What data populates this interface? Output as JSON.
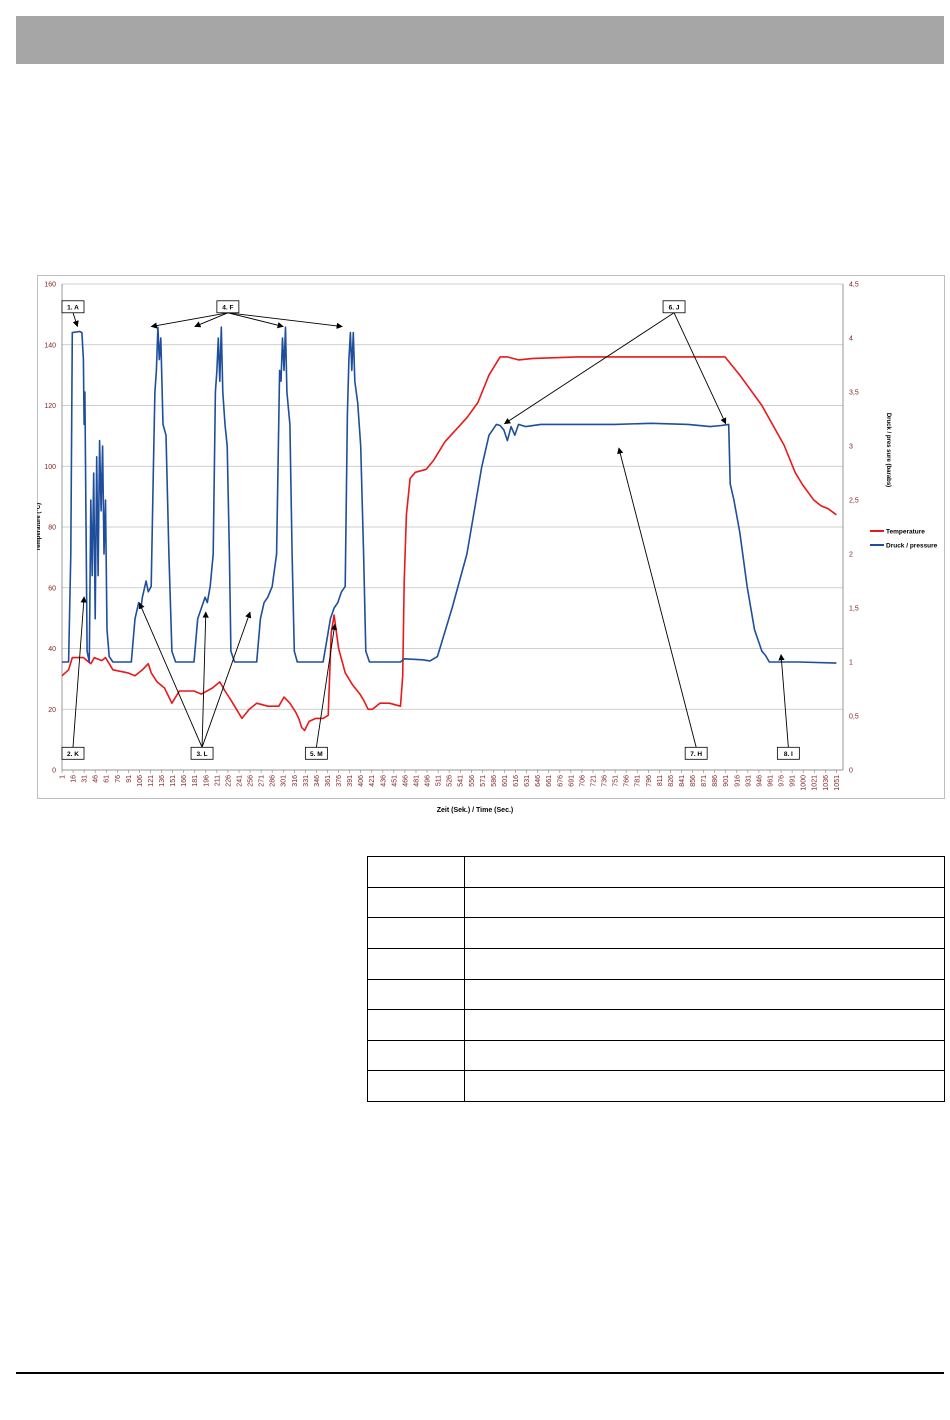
{
  "page": {
    "x_axis_title": "Zeit (Sek.) / Time (Sec.)"
  },
  "chart_data": {
    "type": "line",
    "xlabel": "Zeit (Sek.) / Time (Sec.)",
    "ylabel_left": "Temperature (°C)",
    "ylabel_right": "Druck / pres sure (barabs)",
    "ylim_left": [
      0,
      160
    ],
    "ylim_right": [
      0,
      4.5
    ],
    "xlim": [
      1,
      1060
    ],
    "grid": true,
    "legend_position": "right",
    "x_ticks": [
      "1",
      "16",
      "31",
      "46",
      "61",
      "76",
      "91",
      "106",
      "121",
      "136",
      "151",
      "166",
      "181",
      "196",
      "211",
      "226",
      "241",
      "256",
      "271",
      "286",
      "301",
      "316",
      "331",
      "346",
      "361",
      "376",
      "391",
      "406",
      "421",
      "436",
      "451",
      "466",
      "481",
      "496",
      "511",
      "526",
      "541",
      "556",
      "571",
      "586",
      "601",
      "616",
      "631",
      "646",
      "661",
      "676",
      "691",
      "706",
      "721",
      "736",
      "751",
      "766",
      "781",
      "796",
      "811",
      "826",
      "841",
      "856",
      "871",
      "886",
      "901",
      "916",
      "931",
      "946",
      "961",
      "976",
      "991",
      "1000",
      "1021",
      "1036",
      "1051"
    ],
    "y_ticks_left": [
      "0",
      "20",
      "40",
      "60",
      "80",
      "100",
      "120",
      "140",
      "160"
    ],
    "y_ticks_right": [
      "0",
      "0,5",
      "1",
      "1,5",
      "2",
      "2,5",
      "3",
      "3,5",
      "4",
      "4,5"
    ],
    "series": [
      {
        "name": "Temperature",
        "axis": "left",
        "color": "#e8191b",
        "points": [
          [
            1,
            31
          ],
          [
            10,
            33
          ],
          [
            15,
            37
          ],
          [
            30,
            37
          ],
          [
            40,
            35
          ],
          [
            45,
            37
          ],
          [
            55,
            36
          ],
          [
            60,
            37
          ],
          [
            70,
            33
          ],
          [
            90,
            32
          ],
          [
            100,
            31
          ],
          [
            110,
            33
          ],
          [
            118,
            35
          ],
          [
            122,
            32
          ],
          [
            130,
            29
          ],
          [
            140,
            27
          ],
          [
            150,
            22
          ],
          [
            160,
            26
          ],
          [
            180,
            26
          ],
          [
            190,
            25
          ],
          [
            205,
            27
          ],
          [
            215,
            29
          ],
          [
            222,
            26
          ],
          [
            230,
            23
          ],
          [
            240,
            19
          ],
          [
            245,
            17
          ],
          [
            255,
            20
          ],
          [
            265,
            22
          ],
          [
            280,
            21
          ],
          [
            295,
            21
          ],
          [
            302,
            24
          ],
          [
            310,
            22
          ],
          [
            318,
            19
          ],
          [
            322,
            17
          ],
          [
            326,
            14
          ],
          [
            330,
            13
          ],
          [
            336,
            16
          ],
          [
            345,
            17
          ],
          [
            355,
            17
          ],
          [
            362,
            18
          ],
          [
            366,
            45
          ],
          [
            370,
            51
          ],
          [
            376,
            40
          ],
          [
            385,
            32
          ],
          [
            395,
            28
          ],
          [
            405,
            25
          ],
          [
            410,
            23
          ],
          [
            416,
            20
          ],
          [
            422,
            20
          ],
          [
            432,
            22
          ],
          [
            445,
            22
          ],
          [
            460,
            21
          ],
          [
            463,
            31
          ],
          [
            465,
            62
          ],
          [
            468,
            84
          ],
          [
            473,
            96
          ],
          [
            480,
            98
          ],
          [
            495,
            99
          ],
          [
            505,
            102
          ],
          [
            520,
            108
          ],
          [
            550,
            116
          ],
          [
            565,
            121
          ],
          [
            580,
            130
          ],
          [
            595,
            136
          ],
          [
            605,
            136
          ],
          [
            620,
            135
          ],
          [
            640,
            135.5
          ],
          [
            700,
            136
          ],
          [
            800,
            136
          ],
          [
            880,
            136
          ],
          [
            900,
            136
          ],
          [
            910,
            133
          ],
          [
            920,
            130
          ],
          [
            950,
            120
          ],
          [
            980,
            107
          ],
          [
            995,
            98
          ],
          [
            1005,
            94
          ],
          [
            1020,
            89
          ],
          [
            1030,
            87
          ],
          [
            1040,
            86
          ],
          [
            1051,
            84
          ]
        ]
      },
      {
        "name": "Druck / pressure",
        "axis": "right",
        "color": "#1f4e9c",
        "points": [
          [
            1,
            1.0
          ],
          [
            10,
            1.0
          ],
          [
            13,
            2.0
          ],
          [
            15,
            4.05
          ],
          [
            25,
            4.06
          ],
          [
            28,
            4.05
          ],
          [
            30,
            3.8
          ],
          [
            31,
            3.2
          ],
          [
            32,
            3.5
          ],
          [
            35,
            1.1
          ],
          [
            38,
            1.0
          ],
          [
            40,
            2.5
          ],
          [
            42,
            1.8
          ],
          [
            44,
            2.75
          ],
          [
            46,
            1.4
          ],
          [
            48,
            2.9
          ],
          [
            50,
            1.8
          ],
          [
            52,
            3.05
          ],
          [
            54,
            2.4
          ],
          [
            56,
            3.0
          ],
          [
            58,
            2.0
          ],
          [
            60,
            2.5
          ],
          [
            62,
            1.3
          ],
          [
            65,
            1.05
          ],
          [
            70,
            1.0
          ],
          [
            95,
            1.0
          ],
          [
            100,
            1.4
          ],
          [
            105,
            1.55
          ],
          [
            108,
            1.5
          ],
          [
            110,
            1.6
          ],
          [
            115,
            1.75
          ],
          [
            118,
            1.65
          ],
          [
            122,
            1.7
          ],
          [
            125,
            2.8
          ],
          [
            127,
            3.5
          ],
          [
            129,
            3.7
          ],
          [
            131,
            4.1
          ],
          [
            133,
            3.8
          ],
          [
            135,
            4.0
          ],
          [
            138,
            3.2
          ],
          [
            142,
            3.1
          ],
          [
            146,
            2.0
          ],
          [
            150,
            1.1
          ],
          [
            155,
            1.0
          ],
          [
            180,
            1.0
          ],
          [
            185,
            1.4
          ],
          [
            190,
            1.5
          ],
          [
            195,
            1.6
          ],
          [
            198,
            1.55
          ],
          [
            202,
            1.7
          ],
          [
            206,
            2.0
          ],
          [
            209,
            3.5
          ],
          [
            211,
            3.7
          ],
          [
            213,
            4.0
          ],
          [
            215,
            3.6
          ],
          [
            217,
            4.1
          ],
          [
            219,
            3.5
          ],
          [
            222,
            3.2
          ],
          [
            225,
            3.0
          ],
          [
            228,
            2.0
          ],
          [
            230,
            1.1
          ],
          [
            235,
            1.0
          ],
          [
            265,
            1.0
          ],
          [
            270,
            1.4
          ],
          [
            275,
            1.55
          ],
          [
            280,
            1.6
          ],
          [
            286,
            1.7
          ],
          [
            292,
            2.0
          ],
          [
            296,
            3.7
          ],
          [
            298,
            3.6
          ],
          [
            300,
            4.0
          ],
          [
            302,
            3.7
          ],
          [
            304,
            4.1
          ],
          [
            306,
            3.5
          ],
          [
            310,
            3.2
          ],
          [
            313,
            2.0
          ],
          [
            316,
            1.1
          ],
          [
            320,
            1.0
          ],
          [
            355,
            1.0
          ],
          [
            360,
            1.2
          ],
          [
            365,
            1.4
          ],
          [
            370,
            1.5
          ],
          [
            375,
            1.55
          ],
          [
            380,
            1.65
          ],
          [
            385,
            1.7
          ],
          [
            388,
            3.3
          ],
          [
            390,
            3.8
          ],
          [
            392,
            4.05
          ],
          [
            394,
            3.7
          ],
          [
            396,
            4.05
          ],
          [
            398,
            3.6
          ],
          [
            402,
            3.4
          ],
          [
            406,
            3.0
          ],
          [
            410,
            2.0
          ],
          [
            413,
            1.1
          ],
          [
            418,
            1.0
          ],
          [
            460,
            1.0
          ],
          [
            465,
            1.03
          ],
          [
            490,
            1.02
          ],
          [
            500,
            1.01
          ],
          [
            510,
            1.05
          ],
          [
            530,
            1.5
          ],
          [
            550,
            2.0
          ],
          [
            560,
            2.4
          ],
          [
            570,
            2.8
          ],
          [
            580,
            3.1
          ],
          [
            590,
            3.2
          ],
          [
            595,
            3.19
          ],
          [
            600,
            3.15
          ],
          [
            605,
            3.05
          ],
          [
            610,
            3.18
          ],
          [
            615,
            3.1
          ],
          [
            620,
            3.2
          ],
          [
            630,
            3.18
          ],
          [
            650,
            3.2
          ],
          [
            700,
            3.2
          ],
          [
            750,
            3.2
          ],
          [
            800,
            3.21
          ],
          [
            850,
            3.2
          ],
          [
            880,
            3.18
          ],
          [
            895,
            3.19
          ],
          [
            905,
            3.2
          ],
          [
            907,
            2.65
          ],
          [
            912,
            2.5
          ],
          [
            920,
            2.2
          ],
          [
            930,
            1.7
          ],
          [
            940,
            1.3
          ],
          [
            950,
            1.1
          ],
          [
            955,
            1.06
          ],
          [
            960,
            1.0
          ],
          [
            1000,
            1.0
          ],
          [
            1051,
            0.99
          ]
        ]
      }
    ],
    "annotations": [
      {
        "label": "1. A",
        "box": [
          1,
          152.5
        ],
        "targets": [
          [
            22,
            146
          ]
        ]
      },
      {
        "label": "4. F",
        "box": [
          211,
          152.5
        ],
        "targets": [
          [
            122,
            146
          ],
          [
            181,
            146
          ],
          [
            301,
            146
          ],
          [
            381,
            146
          ]
        ]
      },
      {
        "label": "6. J",
        "box": [
          816,
          152.5
        ],
        "targets": [
          [
            601,
            114
          ],
          [
            901,
            114
          ]
        ]
      },
      {
        "label": "2. K",
        "box": [
          1,
          5.5
        ],
        "targets": [
          [
            31,
            57
          ]
        ]
      },
      {
        "label": "3. L",
        "box": [
          176,
          5.5
        ],
        "targets": [
          [
            106,
            55
          ],
          [
            196,
            52
          ],
          [
            256,
            52
          ]
        ]
      },
      {
        "label": "5. M",
        "box": [
          331,
          5.5
        ],
        "targets": [
          [
            371,
            48
          ]
        ]
      },
      {
        "label": "7. H",
        "box": [
          846,
          5.5
        ],
        "targets": [
          [
            756,
            106
          ]
        ]
      },
      {
        "label": "8. I",
        "box": [
          971,
          5.5
        ],
        "targets": [
          [
            976,
            38
          ]
        ]
      }
    ]
  },
  "table": {
    "rows": 8,
    "cells": [
      [
        "",
        ""
      ],
      [
        "",
        ""
      ],
      [
        "",
        ""
      ],
      [
        "",
        ""
      ],
      [
        "",
        ""
      ],
      [
        "",
        ""
      ],
      [
        "",
        ""
      ],
      [
        "",
        ""
      ]
    ]
  }
}
